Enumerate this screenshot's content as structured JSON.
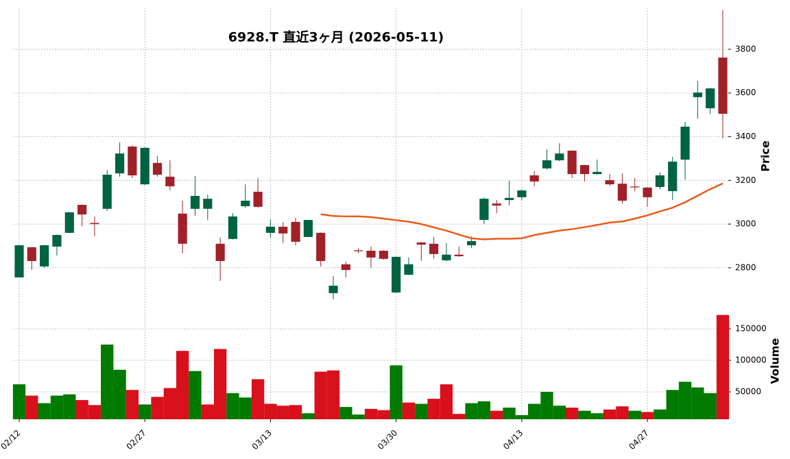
{
  "chart_data": {
    "type": "candlestick",
    "title": "6928.T  直近3ヶ月  (2026-05-11)",
    "categories": [
      "02/12",
      null,
      null,
      null,
      null,
      null,
      null,
      null,
      null,
      null,
      "02/27",
      null,
      null,
      null,
      null,
      null,
      null,
      null,
      null,
      null,
      "03/13",
      null,
      null,
      null,
      null,
      null,
      null,
      null,
      null,
      null,
      "03/30",
      null,
      null,
      null,
      null,
      null,
      null,
      null,
      null,
      null,
      "04/13",
      null,
      null,
      null,
      null,
      null,
      null,
      null,
      null,
      null,
      "04/27",
      null,
      null,
      null,
      null,
      null,
      null
    ],
    "open": [
      2756,
      2894,
      2806,
      2897,
      2960,
      3088,
      3005,
      3070,
      3232,
      3355,
      3182,
      3280,
      3217,
      3048,
      3070,
      3070,
      2910,
      2932,
      3082,
      3148,
      2960,
      2988,
      3010,
      2941,
      2960,
      2684,
      2816,
      2880,
      2878,
      2878,
      2687,
      2768,
      2916,
      2910,
      2834,
      2860,
      2903,
      3019,
      3094,
      3110,
      3123,
      3223,
      3255,
      3292,
      3336,
      3270,
      3229,
      3201,
      3185,
      3172,
      3167,
      3170,
      3151,
      3295,
      3581,
      3530,
      3762
    ],
    "high": [
      2905,
      2895,
      2905,
      2952,
      3056,
      3090,
      3035,
      3248,
      3374,
      3360,
      3352,
      3311,
      3292,
      3107,
      3220,
      3135,
      2938,
      3050,
      3182,
      3211,
      3022,
      3010,
      3029,
      3020,
      2962,
      2762,
      2828,
      2890,
      2897,
      2880,
      2852,
      2847,
      2918,
      2941,
      2913,
      2897,
      2944,
      3122,
      3110,
      3198,
      3158,
      3242,
      3342,
      3370,
      3338,
      3272,
      3295,
      3229,
      3232,
      3211,
      3170,
      3236,
      3308,
      3468,
      3656,
      3624,
      3979
    ],
    "low": [
      2755,
      2790,
      2800,
      2856,
      2958,
      2990,
      2944,
      3060,
      3217,
      3211,
      3178,
      3217,
      3154,
      2866,
      3038,
      3019,
      2740,
      2930,
      3075,
      3075,
      2938,
      2913,
      2903,
      2940,
      2806,
      2656,
      2756,
      2866,
      2800,
      2836,
      2685,
      2766,
      2831,
      2841,
      2830,
      2850,
      2890,
      3000,
      3050,
      3085,
      3110,
      3173,
      3250,
      3288,
      3211,
      3195,
      3225,
      3175,
      3094,
      3150,
      3079,
      3160,
      3110,
      3204,
      3483,
      3505,
      3392
    ],
    "close": [
      2903,
      2831,
      2903,
      2950,
      3054,
      3044,
      3000,
      3226,
      3323,
      3223,
      3349,
      3226,
      3173,
      2910,
      3129,
      3116,
      2831,
      3035,
      3107,
      3079,
      2988,
      2957,
      2919,
      3019,
      2831,
      2718,
      2790,
      2876,
      2847,
      2841,
      2850,
      2816,
      2906,
      2863,
      2860,
      2853,
      2922,
      3116,
      3085,
      3120,
      3154,
      3195,
      3292,
      3323,
      3229,
      3229,
      3239,
      3182,
      3107,
      3168,
      3123,
      3223,
      3286,
      3446,
      3602,
      3621,
      3505
    ],
    "ylim": [
      2646,
      3988
    ],
    "yticks": [
      2800,
      3000,
      3200,
      3400,
      3600,
      3800
    ],
    "ylabel": "Price",
    "up_color": "#006340",
    "down_color": "#a02128",
    "ma": {
      "color": "#ea5b1c",
      "values": [
        null,
        null,
        null,
        null,
        null,
        null,
        null,
        null,
        null,
        null,
        null,
        null,
        null,
        null,
        null,
        null,
        null,
        null,
        null,
        null,
        null,
        null,
        null,
        null,
        3045,
        3037,
        3035,
        3035,
        3032,
        3025,
        3018,
        3011,
        3000,
        2985,
        2970,
        2952,
        2935,
        2930,
        2933,
        2933,
        2935,
        2950,
        2960,
        2970,
        2977,
        2986,
        2996,
        3007,
        3012,
        3025,
        3040,
        3058,
        3075,
        3100,
        3130,
        3160,
        3186
      ]
    },
    "volume": {
      "values": [
        62000,
        44000,
        32000,
        44000,
        46000,
        37000,
        29000,
        125000,
        85000,
        53000,
        30000,
        42000,
        56000,
        115000,
        83000,
        30000,
        118000,
        48000,
        41000,
        70000,
        31000,
        28000,
        29000,
        16000,
        82000,
        84000,
        26000,
        14000,
        23000,
        21000,
        92000,
        33000,
        31000,
        39000,
        62000,
        15000,
        32000,
        35000,
        20000,
        25000,
        13000,
        31000,
        50000,
        28000,
        25000,
        20000,
        16000,
        22000,
        27000,
        20000,
        18000,
        22000,
        53000,
        66000,
        57000,
        48000,
        172000
      ],
      "ylim": [
        6500,
        188000
      ],
      "yticks": [
        50000,
        100000,
        150000
      ],
      "ylabel": "Volume",
      "up_color": "#007a00",
      "down_color": "#d8101c"
    },
    "grid": true
  }
}
